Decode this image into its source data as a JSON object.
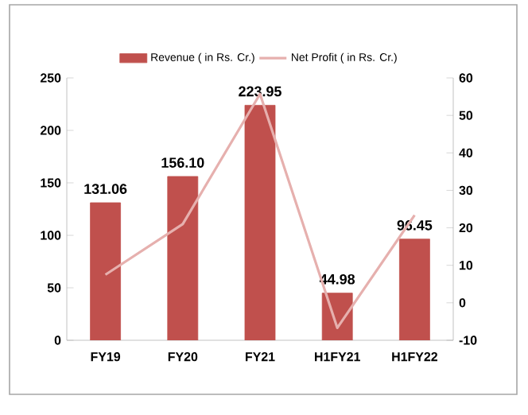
{
  "chart_data": {
    "type": "bar",
    "categories": [
      "FY19",
      "FY20",
      "FY21",
      "H1FY21",
      "H1FY22"
    ],
    "series": [
      {
        "name": "Revenue ( in Rs. Cr.)",
        "color": "#c0504d",
        "values": [
          131.06,
          156.1,
          223.95,
          44.98,
          96.45
        ],
        "value_labels": [
          "131.06",
          "156.10",
          "223.95",
          "44.98",
          "96.45"
        ]
      },
      {
        "name": "Net Profit ( in Rs. Cr.)",
        "type": "line",
        "axis": "y2",
        "color": "#e6b0ae",
        "values": [
          7.5,
          21,
          55.7,
          -6.7,
          23.4
        ]
      }
    ],
    "ylim": [
      0,
      250
    ],
    "yticks": [
      0,
      50,
      100,
      150,
      200,
      250
    ],
    "y2lim": [
      -10,
      60
    ],
    "y2ticks": [
      -10,
      0,
      10,
      20,
      30,
      40,
      50,
      60
    ],
    "legend": "top",
    "grid": false
  }
}
